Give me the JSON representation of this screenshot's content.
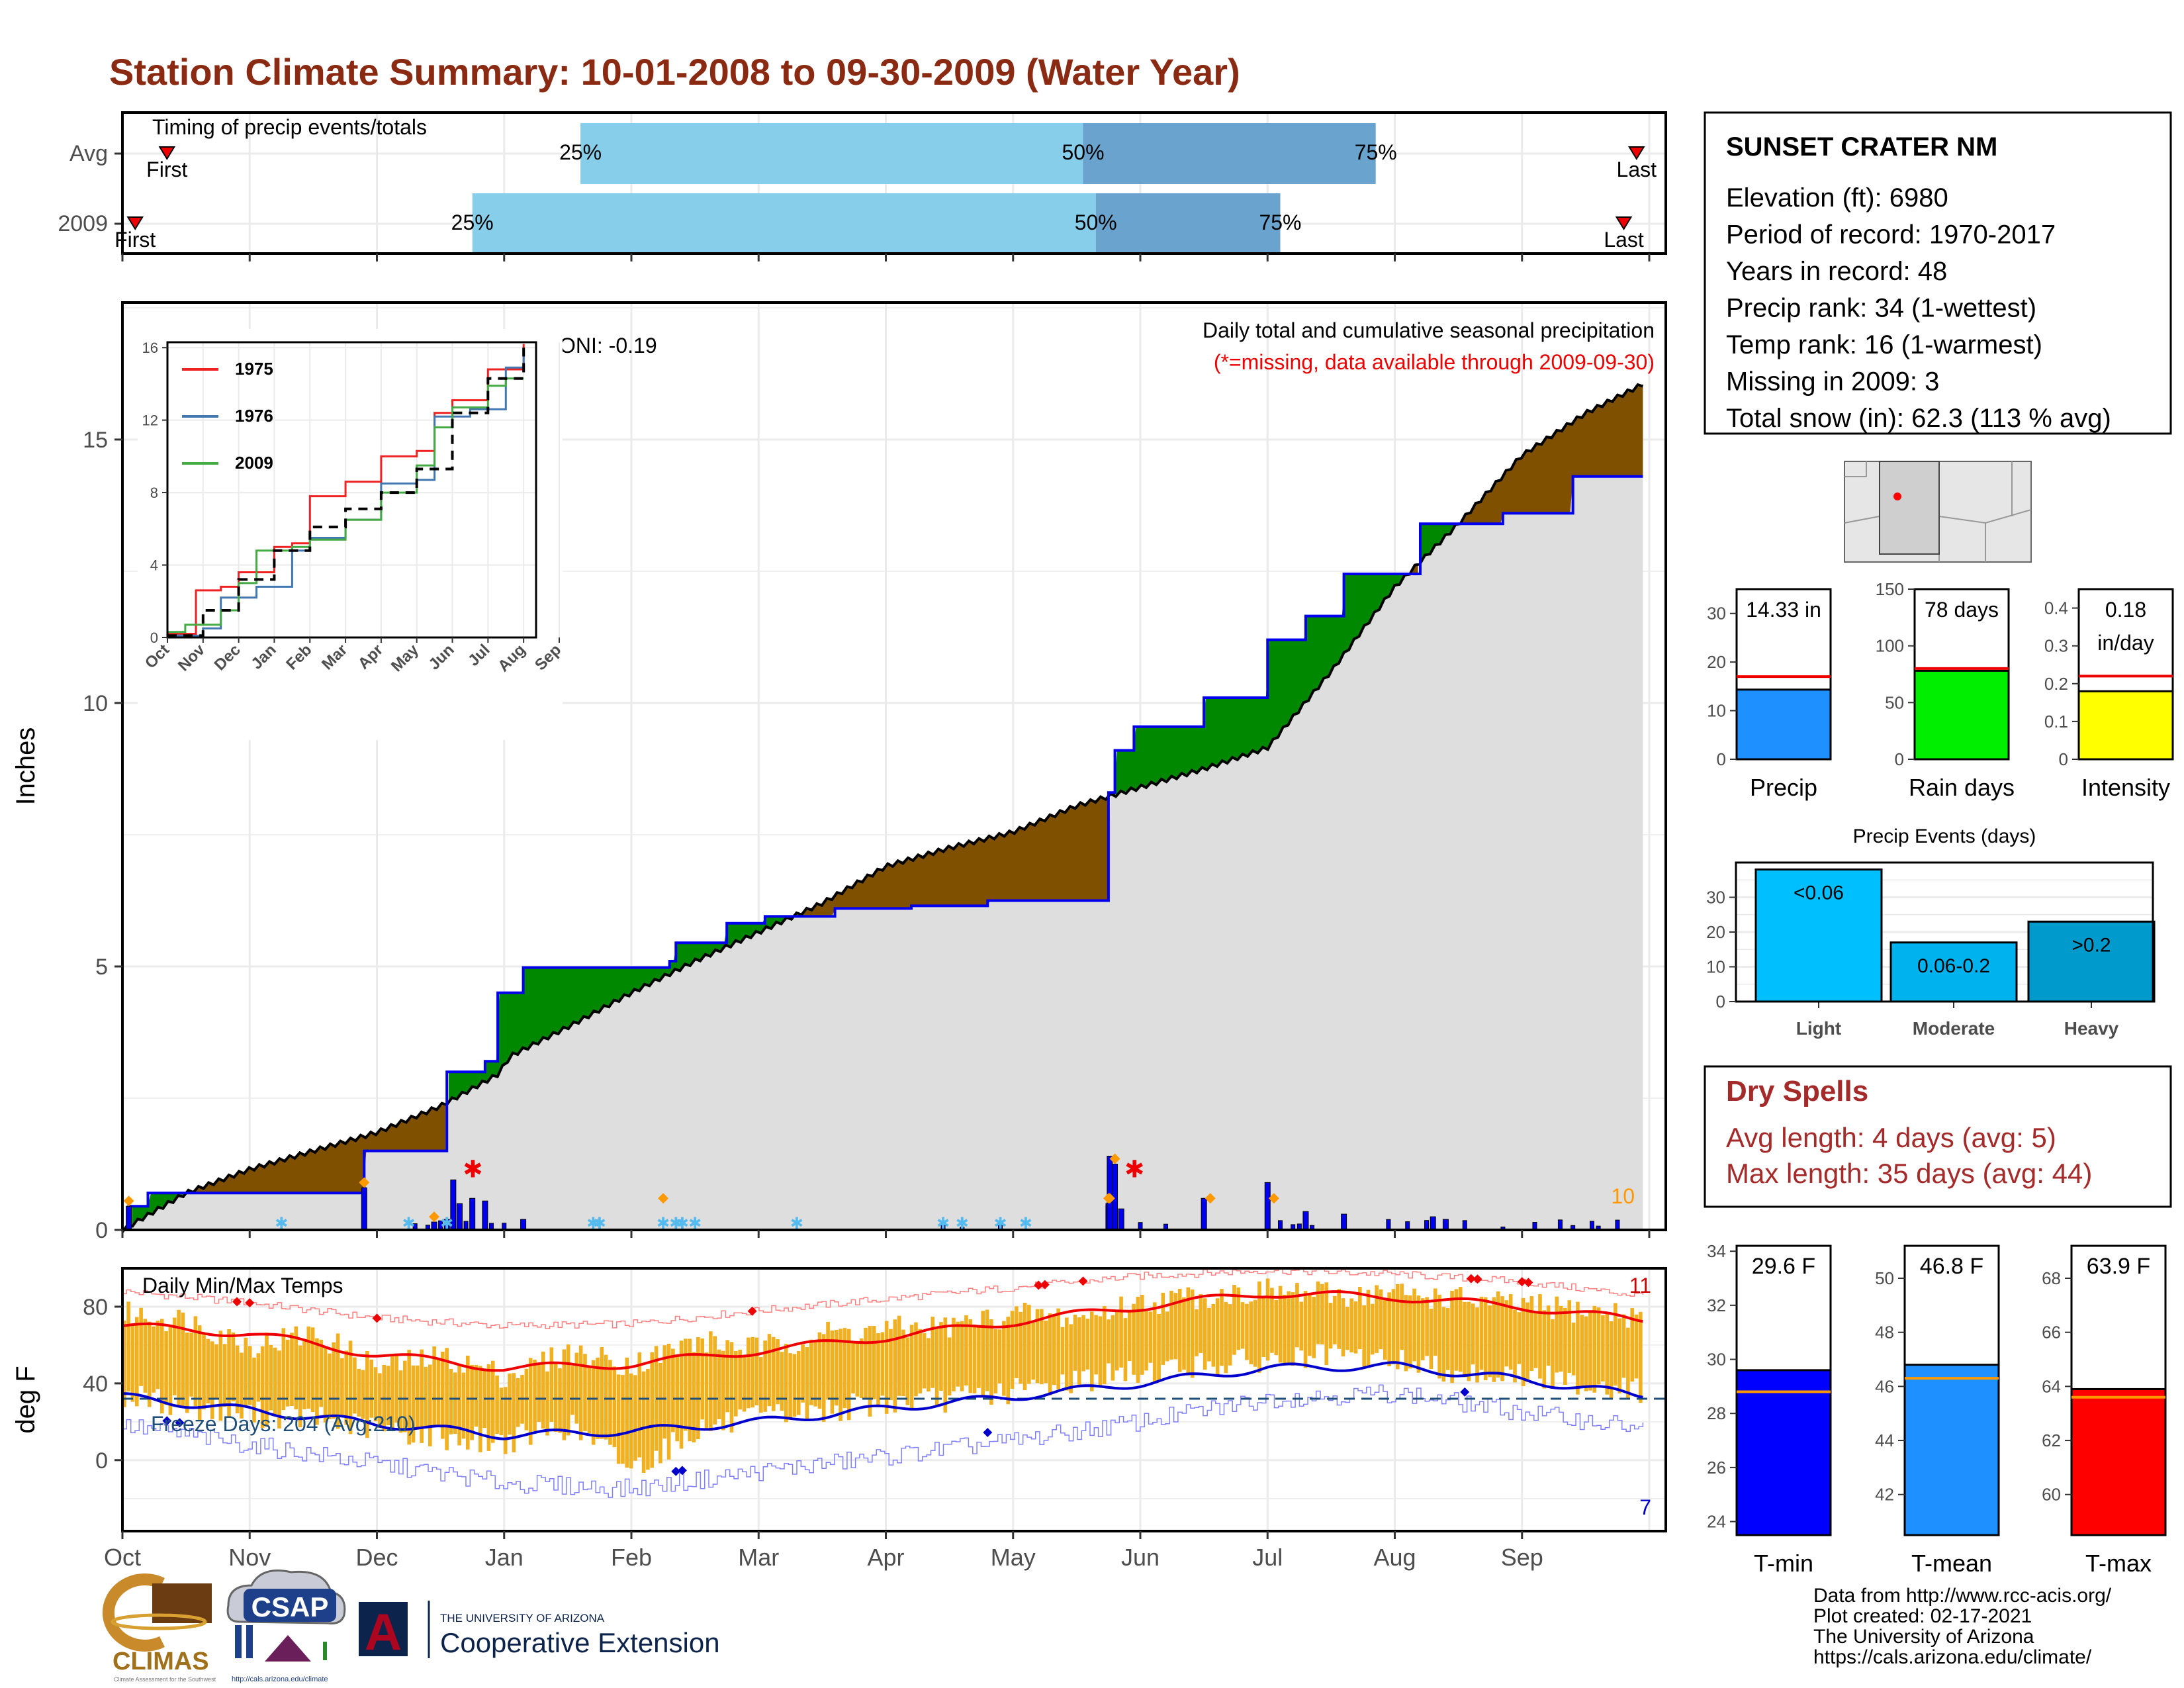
{
  "title": "Station Climate Summary: 10-01-2008 to 09-30-2009 (Water Year)",
  "months": [
    "Oct",
    "Nov",
    "Dec",
    "Jan",
    "Feb",
    "Mar",
    "Apr",
    "May",
    "Jun",
    "Jul",
    "Aug",
    "Sep"
  ],
  "colors": {
    "title": "#8b2a12",
    "red": "#ee0000",
    "green": "#008800",
    "brown": "#7f5000",
    "blue": "#0000ee",
    "gold": "#f0b020",
    "orange": "#ff9900",
    "grey": "#dedede",
    "light_blue": "#87ceeb",
    "mid_blue": "#6aa3cd"
  },
  "chart_data": [
    {
      "id": "timing",
      "type": "bar",
      "title": "Timing of precip events/totals",
      "rows": [
        {
          "label": "Avg",
          "first_month": 0.35,
          "last_month": 11.9,
          "p25": 3.6,
          "p50": 7.55,
          "p75": 9.85
        },
        {
          "label": "2009",
          "first_month": 0.1,
          "last_month": 11.8,
          "p25": 2.75,
          "p50": 7.65,
          "p75": 9.1
        }
      ],
      "labels": {
        "first": "First",
        "last": "Last",
        "p25": "25%",
        "p50": "50%",
        "p75": "75%"
      }
    },
    {
      "id": "precip",
      "type": "area",
      "title": "Daily total and cumulative seasonal precipitation",
      "subtitle": "(*=missing, data available through 2009-09-30)",
      "ylabel": "Inches",
      "ylim": [
        0,
        17.6
      ],
      "yticks": [
        0,
        5,
        10,
        15
      ],
      "oni_label": "ONI: -0.19",
      "corner_value": "10",
      "avg_cumulative": [
        [
          0.0,
          0
        ],
        [
          0.5,
          0.7
        ],
        [
          1.0,
          1.15
        ],
        [
          1.5,
          1.5
        ],
        [
          2.0,
          1.85
        ],
        [
          2.5,
          2.35
        ],
        [
          2.95,
          2.95
        ],
        [
          3.05,
          3.3
        ],
        [
          3.5,
          3.85
        ],
        [
          4.0,
          4.5
        ],
        [
          4.5,
          5.1
        ],
        [
          5.0,
          5.65
        ],
        [
          5.5,
          6.2
        ],
        [
          6.0,
          6.9
        ],
        [
          6.5,
          7.25
        ],
        [
          7.0,
          7.55
        ],
        [
          7.5,
          8.05
        ],
        [
          8.0,
          8.4
        ],
        [
          8.5,
          8.75
        ],
        [
          9.0,
          9.15
        ],
        [
          9.5,
          10.6
        ],
        [
          10.0,
          12.2
        ],
        [
          10.5,
          13.4
        ],
        [
          11.0,
          14.7
        ],
        [
          11.5,
          15.5
        ],
        [
          11.95,
          16.05
        ]
      ],
      "cumulative_2009": [
        [
          0.0,
          0
        ],
        [
          0.05,
          0.45
        ],
        [
          0.2,
          0.7
        ],
        [
          1.9,
          0.7
        ],
        [
          1.9,
          1.5
        ],
        [
          2.55,
          1.5
        ],
        [
          2.55,
          3.0
        ],
        [
          2.85,
          3.2
        ],
        [
          2.95,
          3.3
        ],
        [
          2.95,
          4.5
        ],
        [
          3.15,
          4.5
        ],
        [
          3.15,
          4.98
        ],
        [
          4.3,
          4.98
        ],
        [
          4.3,
          5.1
        ],
        [
          4.35,
          5.35
        ],
        [
          4.35,
          5.45
        ],
        [
          4.75,
          5.45
        ],
        [
          4.75,
          5.82
        ],
        [
          4.95,
          5.82
        ],
        [
          5.05,
          5.95
        ],
        [
          5.6,
          6.1
        ],
        [
          6.2,
          6.15
        ],
        [
          6.8,
          6.25
        ],
        [
          7.2,
          6.25
        ],
        [
          7.75,
          6.3
        ],
        [
          7.75,
          8.3
        ],
        [
          7.8,
          8.3
        ],
        [
          7.8,
          9.1
        ],
        [
          7.95,
          9.1
        ],
        [
          7.95,
          9.55
        ],
        [
          8.5,
          9.55
        ],
        [
          8.5,
          10.1
        ],
        [
          9.0,
          10.3
        ],
        [
          9.0,
          11.2
        ],
        [
          9.3,
          11.2
        ],
        [
          9.3,
          11.65
        ],
        [
          9.6,
          11.65
        ],
        [
          9.6,
          12.45
        ],
        [
          10.2,
          12.65
        ],
        [
          10.2,
          13.4
        ],
        [
          10.75,
          13.4
        ],
        [
          10.85,
          13.6
        ],
        [
          11.4,
          14.3
        ],
        [
          11.95,
          14.3
        ]
      ],
      "daily_precip": [
        [
          0.05,
          0.45
        ],
        [
          1.9,
          0.8
        ],
        [
          2.45,
          0.15
        ],
        [
          2.55,
          0.2
        ],
        [
          2.6,
          0.95
        ],
        [
          2.65,
          0.5
        ],
        [
          2.75,
          0.6
        ],
        [
          2.85,
          0.55
        ],
        [
          3.15,
          0.2
        ],
        [
          7.75,
          0.5
        ],
        [
          7.76,
          1.4
        ],
        [
          7.8,
          1.25
        ],
        [
          7.85,
          0.4
        ],
        [
          8.5,
          0.6
        ],
        [
          9.0,
          0.9
        ],
        [
          9.3,
          0.35
        ],
        [
          9.6,
          0.3
        ],
        [
          10.3,
          0.25
        ],
        [
          10.4,
          0.2
        ]
      ],
      "marked_days": [
        0.05,
        1.9,
        2.45,
        4.25,
        7.75,
        7.76,
        7.8,
        8.55,
        9.05
      ],
      "missing_days": [
        2.65,
        7.85
      ],
      "records": [
        "1975",
        "1976",
        "2009"
      ]
    },
    {
      "id": "inset",
      "type": "line",
      "ylim": [
        0,
        16
      ],
      "yticks": [
        0,
        4,
        8,
        12,
        16
      ],
      "series": [
        {
          "name": "1975",
          "color": "#ee2222",
          "values": [
            [
              0.0,
              0.2
            ],
            [
              0.8,
              2.6
            ],
            [
              1.5,
              2.8
            ],
            [
              2.0,
              3.6
            ],
            [
              3.0,
              5.0
            ],
            [
              3.5,
              5.2
            ],
            [
              4.0,
              7.8
            ],
            [
              5.0,
              8.6
            ],
            [
              6.0,
              10.0
            ],
            [
              7.0,
              10.3
            ],
            [
              7.5,
              12.4
            ],
            [
              8.0,
              13.1
            ],
            [
              9.0,
              14.8
            ],
            [
              10.0,
              16.2
            ]
          ]
        },
        {
          "name": "1976",
          "color": "#4277b0",
          "values": [
            [
              0.0,
              0.1
            ],
            [
              1.0,
              0.5
            ],
            [
              1.5,
              2.2
            ],
            [
              2.5,
              2.8
            ],
            [
              3.5,
              4.8
            ],
            [
              4.0,
              5.5
            ],
            [
              5.0,
              6.5
            ],
            [
              6.0,
              8.5
            ],
            [
              7.0,
              8.7
            ],
            [
              7.5,
              12.2
            ],
            [
              8.5,
              12.6
            ],
            [
              9.5,
              14.9
            ],
            [
              10.0,
              16.0
            ]
          ]
        },
        {
          "name": "2009",
          "color": "#44aa44",
          "values": [
            [
              0.0,
              0.3
            ],
            [
              0.5,
              0.7
            ],
            [
              1.5,
              1.5
            ],
            [
              2.0,
              3.0
            ],
            [
              2.5,
              4.8
            ],
            [
              3.5,
              5.0
            ],
            [
              4.0,
              5.4
            ],
            [
              5.0,
              6.5
            ],
            [
              6.0,
              8.0
            ],
            [
              7.0,
              9.5
            ],
            [
              7.5,
              11.6
            ],
            [
              8.0,
              12.7
            ],
            [
              9.0,
              13.9
            ],
            [
              9.5,
              14.3
            ],
            [
              10.0,
              14.3
            ]
          ]
        },
        {
          "name": "",
          "color": "#000000",
          "dashed": true,
          "values": [
            [
              0.0,
              0.1
            ],
            [
              1.0,
              1.5
            ],
            [
              2.0,
              3.2
            ],
            [
              3.0,
              4.8
            ],
            [
              4.0,
              6.1
            ],
            [
              5.0,
              7.1
            ],
            [
              6.0,
              8.0
            ],
            [
              7.0,
              9.3
            ],
            [
              8.0,
              12.4
            ],
            [
              9.0,
              14.3
            ],
            [
              10.0,
              16.0
            ]
          ]
        }
      ]
    },
    {
      "id": "temps",
      "type": "line",
      "title": "Daily Min/Max Temps",
      "ylabel": "deg F",
      "ylim": [
        -37,
        100
      ],
      "yticks": [
        0,
        40,
        80
      ],
      "freeze_label": "Freeze Days: 204 (Avg:210)",
      "freeze_line": 32,
      "count_high": "11",
      "count_low": "7",
      "avg_max": [
        [
          0,
          70
        ],
        [
          1,
          66
        ],
        [
          2,
          55
        ],
        [
          3,
          48
        ],
        [
          4,
          50
        ],
        [
          5,
          57
        ],
        [
          6,
          64
        ],
        [
          7,
          72
        ],
        [
          8,
          80
        ],
        [
          9,
          87
        ],
        [
          10,
          85
        ],
        [
          11,
          80
        ],
        [
          11.9,
          73
        ]
      ],
      "avg_min": [
        [
          0,
          33
        ],
        [
          1,
          26
        ],
        [
          2,
          19
        ],
        [
          3,
          13
        ],
        [
          4,
          15
        ],
        [
          5,
          20
        ],
        [
          6,
          27
        ],
        [
          7,
          33
        ],
        [
          8,
          40
        ],
        [
          9,
          48
        ],
        [
          10,
          49
        ],
        [
          11,
          42
        ],
        [
          11.9,
          34
        ]
      ],
      "rec_max": [
        [
          0,
          88
        ],
        [
          1,
          82
        ],
        [
          2,
          74
        ],
        [
          3,
          70
        ],
        [
          4,
          71
        ],
        [
          5,
          78
        ],
        [
          6,
          84
        ],
        [
          7,
          90
        ],
        [
          8,
          96
        ],
        [
          9,
          99
        ],
        [
          10,
          97
        ],
        [
          11,
          93
        ],
        [
          11.9,
          86
        ]
      ],
      "rec_min": [
        [
          0,
          18
        ],
        [
          1,
          8
        ],
        [
          2,
          -2
        ],
        [
          3,
          -12
        ],
        [
          4,
          -15
        ],
        [
          5,
          -6
        ],
        [
          6,
          2
        ],
        [
          7,
          10
        ],
        [
          8,
          20
        ],
        [
          9,
          32
        ],
        [
          10,
          35
        ],
        [
          11,
          25
        ],
        [
          11.9,
          17
        ]
      ],
      "tmax": [
        [
          0,
          76
        ],
        [
          0.5,
          73
        ],
        [
          1,
          60
        ],
        [
          1.5,
          66
        ],
        [
          2,
          48
        ],
        [
          2.5,
          54
        ],
        [
          3,
          44
        ],
        [
          3.5,
          56
        ],
        [
          4,
          50
        ],
        [
          4.5,
          62
        ],
        [
          5,
          58
        ],
        [
          5.5,
          66
        ],
        [
          6,
          68
        ],
        [
          6.5,
          70
        ],
        [
          7,
          76
        ],
        [
          7.5,
          74
        ],
        [
          8,
          82
        ],
        [
          8.5,
          86
        ],
        [
          9,
          88
        ],
        [
          9.5,
          86
        ],
        [
          10,
          87
        ],
        [
          10.5,
          84
        ],
        [
          11,
          80
        ],
        [
          11.5,
          78
        ],
        [
          11.9,
          75
        ]
      ],
      "tmin": [
        [
          0,
          34
        ],
        [
          0.5,
          28
        ],
        [
          1,
          24
        ],
        [
          1.5,
          22
        ],
        [
          2,
          16
        ],
        [
          2.5,
          12
        ],
        [
          3,
          10
        ],
        [
          3.5,
          18
        ],
        [
          4,
          -4
        ],
        [
          4.5,
          16
        ],
        [
          5,
          22
        ],
        [
          5.5,
          26
        ],
        [
          6,
          30
        ],
        [
          6.5,
          32
        ],
        [
          7,
          36
        ],
        [
          7.5,
          42
        ],
        [
          8,
          46
        ],
        [
          8.5,
          50
        ],
        [
          9,
          52
        ],
        [
          9.5,
          54
        ],
        [
          10,
          52
        ],
        [
          10.5,
          46
        ],
        [
          11,
          44
        ],
        [
          11.5,
          40
        ],
        [
          11.9,
          36
        ]
      ],
      "record_highs": [
        0.9,
        1.0,
        2.0,
        4.95,
        7.2,
        7.25,
        7.55,
        10.6,
        10.65,
        11.0,
        11.05
      ],
      "record_lows": [
        0.35,
        0.45,
        4.35,
        4.4,
        6.8,
        10.55
      ]
    },
    {
      "id": "precip_bars",
      "type": "bar",
      "categories": [
        "Precip",
        "Rain days",
        "Intensity"
      ],
      "values": [
        14.33,
        78,
        0.18
      ],
      "averages": [
        17.0,
        80,
        0.22
      ],
      "labels": [
        "14.33 in",
        "78 days",
        "0.18 in/day"
      ],
      "ylims": [
        [
          0,
          35
        ],
        [
          0,
          150
        ],
        [
          0,
          0.45
        ]
      ],
      "yticks": [
        [
          0,
          10,
          20,
          30
        ],
        [
          0,
          50,
          100,
          150
        ],
        [
          0.0,
          0.1,
          0.2,
          0.3,
          0.4
        ]
      ],
      "colors": [
        "#1e90ff",
        "#00ee00",
        "#ffff00"
      ]
    },
    {
      "id": "events",
      "type": "bar",
      "title": "Precip Events (days)",
      "categories": [
        "Light",
        "Moderate",
        "Heavy"
      ],
      "values": [
        38,
        17,
        23
      ],
      "labels": [
        "<0.06",
        "0.06-0.2",
        ">0.2"
      ],
      "ylim": [
        0,
        40
      ],
      "yticks": [
        0,
        10,
        20,
        30
      ],
      "colors": [
        "#00bfff",
        "#00b2ee",
        "#009acd"
      ]
    },
    {
      "id": "temp_bars",
      "type": "bar",
      "categories": [
        "T-min",
        "T-mean",
        "T-max"
      ],
      "values": [
        29.6,
        46.8,
        63.9
      ],
      "averages": [
        28.8,
        46.3,
        63.6
      ],
      "labels": [
        "29.6 F",
        "46.8 F",
        "63.9 F"
      ],
      "ylims": [
        [
          23.5,
          34.2
        ],
        [
          40.5,
          51.2
        ],
        [
          58.5,
          69.2
        ]
      ],
      "yticks": [
        [
          24,
          26,
          28,
          30,
          32,
          34
        ],
        [
          42,
          44,
          46,
          48,
          50
        ],
        [
          60,
          62,
          64,
          66,
          68
        ]
      ],
      "colors": [
        "#0000ff",
        "#1e90ff",
        "#ff0000"
      ]
    }
  ],
  "station": {
    "name": "SUNSET CRATER NM",
    "lines": [
      "Elevation (ft): 6980",
      "Period of record: 1970-2017",
      "Years in record: 48",
      "Precip rank: 34 (1-wettest)",
      "Temp rank: 16 (1-warmest)",
      "Missing in 2009: 3",
      "Total snow (in): 62.3 (113 % avg)"
    ]
  },
  "dry_spells": {
    "title": "Dry Spells",
    "avg": "Avg length: 4 days (avg: 5)",
    "max": "Max length: 35 days (avg: 44)"
  },
  "footer": {
    "lines": [
      "Data from http://www.rcc-acis.org/",
      "Plot created: 02-17-2021",
      "The University of Arizona",
      "https://cals.arizona.edu/climate/"
    ]
  },
  "logos": {
    "climas": "CLIMAS",
    "climas_sub": "Climate Assessment for the Southwest",
    "csap": "CSAP",
    "csap_sub": "http://cals.arizona.edu/climate",
    "ua_letter": "A",
    "ua_top": "THE UNIVERSITY OF ARIZONA",
    "ua_bottom": "Cooperative Extension"
  }
}
